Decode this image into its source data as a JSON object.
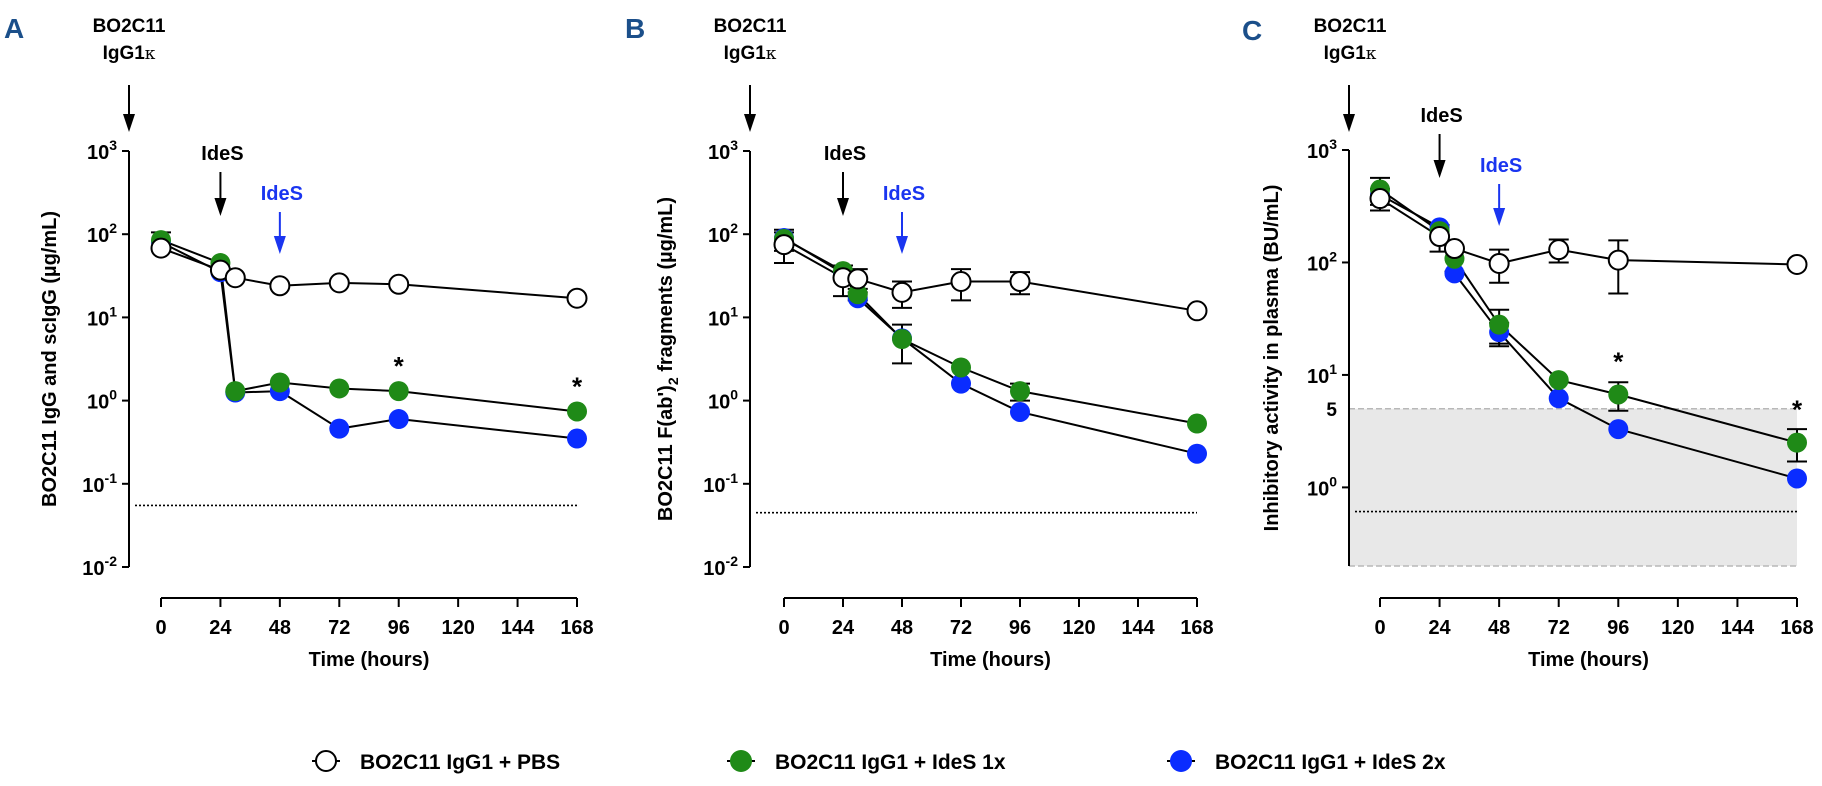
{
  "figure": {
    "legend": {
      "placement": "bottom-center",
      "entries": [
        {
          "label": "BO2C11 IgG1 + PBS",
          "series_key": "pbs"
        },
        {
          "label": "BO2C11 IgG1 + IdeS 1x",
          "series_key": "ides1x"
        },
        {
          "label": "BO2C11 IgG1 + IdeS 2x",
          "series_key": "ides2x"
        }
      ]
    },
    "colors": {
      "pbs_fill": "#ffffff",
      "ides1x": "#1f8a17",
      "ides2x": "#0a2cff",
      "panel_letter": "#1b4f8a",
      "ides2x_annotation": "#1a35f0",
      "shade": "#e8e8e8"
    }
  },
  "chart_data": [
    {
      "panel": "A",
      "type": "line",
      "yscale": "log",
      "title": "",
      "xlabel": "Time (hours)",
      "ylabel": "BO2C11 IgG and scIgG (µg/mL)",
      "xlim": [
        0,
        168
      ],
      "ylim": [
        0.01,
        1000
      ],
      "xticks": [
        0,
        24,
        48,
        72,
        96,
        120,
        144,
        168
      ],
      "yticks": [
        {
          "v": 0.01,
          "base": "10",
          "exp": "-2"
        },
        {
          "v": 0.1,
          "base": "10",
          "exp": "-1"
        },
        {
          "v": 1,
          "base": "10",
          "exp": "0"
        },
        {
          "v": 10,
          "base": "10",
          "exp": "1"
        },
        {
          "v": 100,
          "base": "10",
          "exp": "2"
        },
        {
          "v": 1000,
          "base": "10",
          "exp": "3"
        }
      ],
      "grid": false,
      "annotations": {
        "injection": {
          "line1": "BO2C11",
          "line2": "IgG1",
          "kappa": "κ"
        },
        "ides_1": {
          "label": "IdeS",
          "x": 24
        },
        "ides_2": {
          "label": "IdeS",
          "x": 48
        },
        "lod": 0.055,
        "stars": [
          {
            "x": 96,
            "y": 1.3,
            "label": "*"
          },
          {
            "x": 168,
            "y": 0.74,
            "label": "*"
          }
        ]
      },
      "series": [
        {
          "name": "BO2C11 IgG1 + PBS",
          "key": "pbs",
          "x": [
            0,
            24,
            30,
            48,
            72,
            96,
            168
          ],
          "y": [
            68,
            37,
            30,
            24,
            26,
            25,
            17
          ],
          "err": [
            0,
            0,
            0,
            0,
            0,
            0,
            0
          ]
        },
        {
          "name": "BO2C11 IgG1 + IdeS 1x",
          "key": "ides1x",
          "x": [
            0,
            24,
            30,
            48,
            72,
            96,
            168
          ],
          "y": [
            85,
            45,
            1.3,
            1.65,
            1.4,
            1.3,
            0.74
          ],
          "err": [
            20,
            0,
            0,
            0,
            0,
            0,
            0
          ]
        },
        {
          "name": "BO2C11 IgG1 + IdeS 2x",
          "key": "ides2x",
          "x": [
            0,
            24,
            30,
            48,
            72,
            96,
            168
          ],
          "y": [
            80,
            35,
            1.25,
            1.3,
            0.46,
            0.6,
            0.35
          ],
          "err": [
            0,
            0,
            0,
            0,
            0,
            0,
            0
          ]
        }
      ]
    },
    {
      "panel": "B",
      "type": "line",
      "yscale": "log",
      "title": "",
      "xlabel": "Time (hours)",
      "ylabel_main": "BO2C11 F(ab')",
      "ylabel_sub": "2",
      "ylabel_tail": " fragments (µg/mL)",
      "xlim": [
        0,
        168
      ],
      "ylim": [
        0.01,
        1000
      ],
      "xticks": [
        0,
        24,
        48,
        72,
        96,
        120,
        144,
        168
      ],
      "yticks": [
        {
          "v": 0.01,
          "base": "10",
          "exp": "-2"
        },
        {
          "v": 0.1,
          "base": "10",
          "exp": "-1"
        },
        {
          "v": 1,
          "base": "10",
          "exp": "0"
        },
        {
          "v": 10,
          "base": "10",
          "exp": "1"
        },
        {
          "v": 100,
          "base": "10",
          "exp": "2"
        },
        {
          "v": 1000,
          "base": "10",
          "exp": "3"
        }
      ],
      "grid": false,
      "annotations": {
        "injection": {
          "line1": "BO2C11",
          "line2": "IgG1",
          "kappa": "κ"
        },
        "ides_1": {
          "label": "IdeS",
          "x": 24
        },
        "ides_2": {
          "label": "IdeS",
          "x": 48
        },
        "lod": 0.045,
        "stars": []
      },
      "series": [
        {
          "name": "BO2C11 IgG1 + PBS",
          "key": "pbs",
          "x": [
            0,
            24,
            30,
            48,
            72,
            96,
            168
          ],
          "y": [
            75,
            30,
            29,
            20,
            27,
            27,
            12
          ],
          "err": [
            30,
            12,
            9,
            7,
            11,
            8,
            0
          ]
        },
        {
          "name": "BO2C11 IgG1 + IdeS 1x",
          "key": "ides1x",
          "x": [
            0,
            24,
            30,
            48,
            72,
            96,
            168
          ],
          "y": [
            88,
            36,
            19,
            5.5,
            2.5,
            1.3,
            0.53
          ],
          "err": [
            25,
            0,
            3,
            2.7,
            0,
            0.3,
            0
          ]
        },
        {
          "name": "BO2C11 IgG1 + IdeS 2x",
          "key": "ides2x",
          "x": [
            0,
            24,
            30,
            48,
            72,
            96,
            168
          ],
          "y": [
            90,
            34,
            17,
            5.6,
            1.6,
            0.73,
            0.23
          ],
          "err": [
            0,
            0,
            0,
            0,
            0,
            0,
            0
          ]
        }
      ]
    },
    {
      "panel": "C",
      "type": "line",
      "yscale": "log",
      "title": "",
      "xlabel": "Time (hours)",
      "ylabel": "Inhibitory activity in plasma (BU/mL)",
      "xlim": [
        0,
        168
      ],
      "ylim": [
        0.2,
        1000
      ],
      "xticks": [
        0,
        24,
        48,
        72,
        96,
        120,
        144,
        168
      ],
      "yticks": [
        {
          "v": 1,
          "base": "10",
          "exp": "0"
        },
        {
          "v": 10,
          "base": "10",
          "exp": "1"
        },
        {
          "v": 100,
          "base": "10",
          "exp": "2"
        },
        {
          "v": 1000,
          "base": "10",
          "exp": "3"
        }
      ],
      "extra_ytick": {
        "v": 5,
        "label": "5"
      },
      "grid": false,
      "annotations": {
        "injection": {
          "line1": "BO2C11",
          "line2": "IgG1",
          "kappa": "κ"
        },
        "ides_1": {
          "label": "IdeS",
          "x": 24
        },
        "ides_2": {
          "label": "IdeS",
          "x": 48
        },
        "lod": 0.61,
        "shaded_range": [
          0.2,
          5
        ],
        "stars": [
          {
            "x": 96,
            "y": 6.7,
            "label": "*"
          },
          {
            "x": 168,
            "y": 2.5,
            "label": "*"
          }
        ]
      },
      "series": [
        {
          "name": "BO2C11 IgG1 + PBS",
          "key": "pbs",
          "x": [
            0,
            24,
            30,
            48,
            72,
            96,
            168
          ],
          "y": [
            370,
            170,
            133,
            98,
            130,
            105,
            96
          ],
          "err": [
            80,
            45,
            0,
            32,
            30,
            52,
            0
          ]
        },
        {
          "name": "BO2C11 IgG1 + IdeS 1x",
          "key": "ides1x",
          "x": [
            0,
            24,
            30,
            48,
            72,
            96,
            168
          ],
          "y": [
            445,
            190,
            108,
            28,
            9,
            6.7,
            2.5
          ],
          "err": [
            120,
            0,
            25,
            10,
            0,
            1.9,
            0.8
          ]
        },
        {
          "name": "BO2C11 IgG1 + IdeS 2x",
          "key": "ides2x",
          "x": [
            0,
            24,
            30,
            48,
            72,
            96,
            168
          ],
          "y": [
            400,
            205,
            80,
            24,
            6.2,
            3.3,
            1.2
          ],
          "err": [
            0,
            0,
            0,
            5,
            0,
            0,
            0
          ]
        }
      ]
    }
  ]
}
